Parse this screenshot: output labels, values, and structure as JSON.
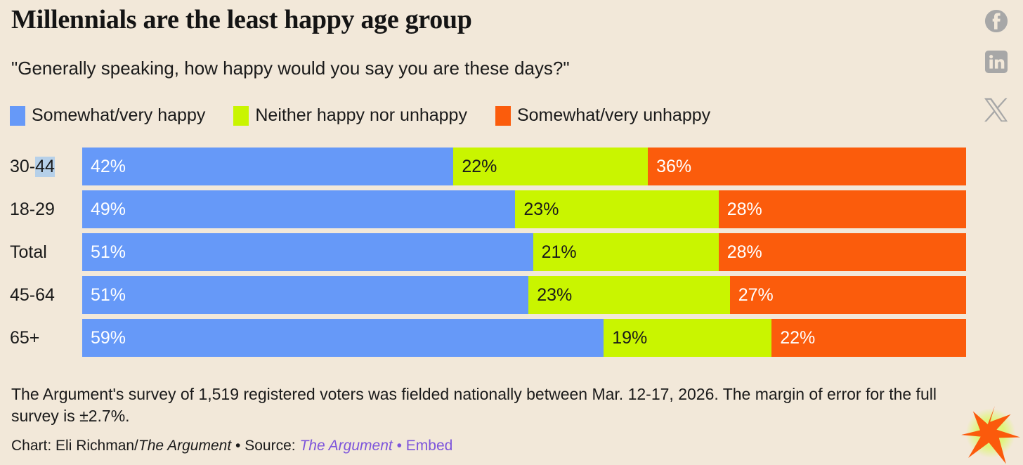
{
  "page": {
    "background_color": "#f2e8d9",
    "title": "Millennials are the least happy age group",
    "subtitle": "\"Generally speaking, how happy would you say you are these days?\""
  },
  "chart_data": {
    "type": "bar",
    "variant": "horizontal-stacked",
    "title": "Millennials are the least happy age group",
    "subtitle": "\"Generally speaking, how happy would you say you are these days?\"",
    "categories": [
      "30-44",
      "18-29",
      "Total",
      "45-64",
      "65+"
    ],
    "series": [
      {
        "name": "Somewhat/very happy",
        "color": "#6699f8",
        "label_color": "#ffffff",
        "values": [
          42,
          49,
          51,
          51,
          59
        ]
      },
      {
        "name": "Neither happy nor unhappy",
        "color": "#c9f500",
        "label_color": "#1a1a1a",
        "values": [
          22,
          23,
          21,
          23,
          19
        ]
      },
      {
        "name": "Somewhat/very unhappy",
        "color": "#fb5c0c",
        "label_color": "#ffffff",
        "values": [
          36,
          28,
          28,
          27,
          22
        ]
      }
    ],
    "value_suffix": "%",
    "xlim": [
      0,
      100
    ],
    "grid": false,
    "legend_position": "top"
  },
  "text_selection": {
    "category": "30-44",
    "selected_part": "44",
    "highlight_color": "#b6d0e9"
  },
  "footer": {
    "note": "The Argument's survey of 1,519 registered voters was fielded nationally between Mar. 12-17, 2026. The margin of error for the full survey is ±2.7%."
  },
  "credit": {
    "chart_label": "Chart: Eli Richman/",
    "author_publication": "The Argument",
    "separator": " • ",
    "source_label": "Source: ",
    "source_link": "The Argument",
    "embed_link": "Embed",
    "link_color": "#7d55db"
  },
  "social": {
    "color": "#a7a7a7",
    "icons": [
      {
        "name": "facebook-icon"
      },
      {
        "name": "linkedin-icon"
      },
      {
        "name": "x-icon"
      }
    ]
  },
  "logo": {
    "name": "argument-starburst-logo",
    "star_color": "#fb5a0c",
    "glow_color": "#dcf76c"
  }
}
